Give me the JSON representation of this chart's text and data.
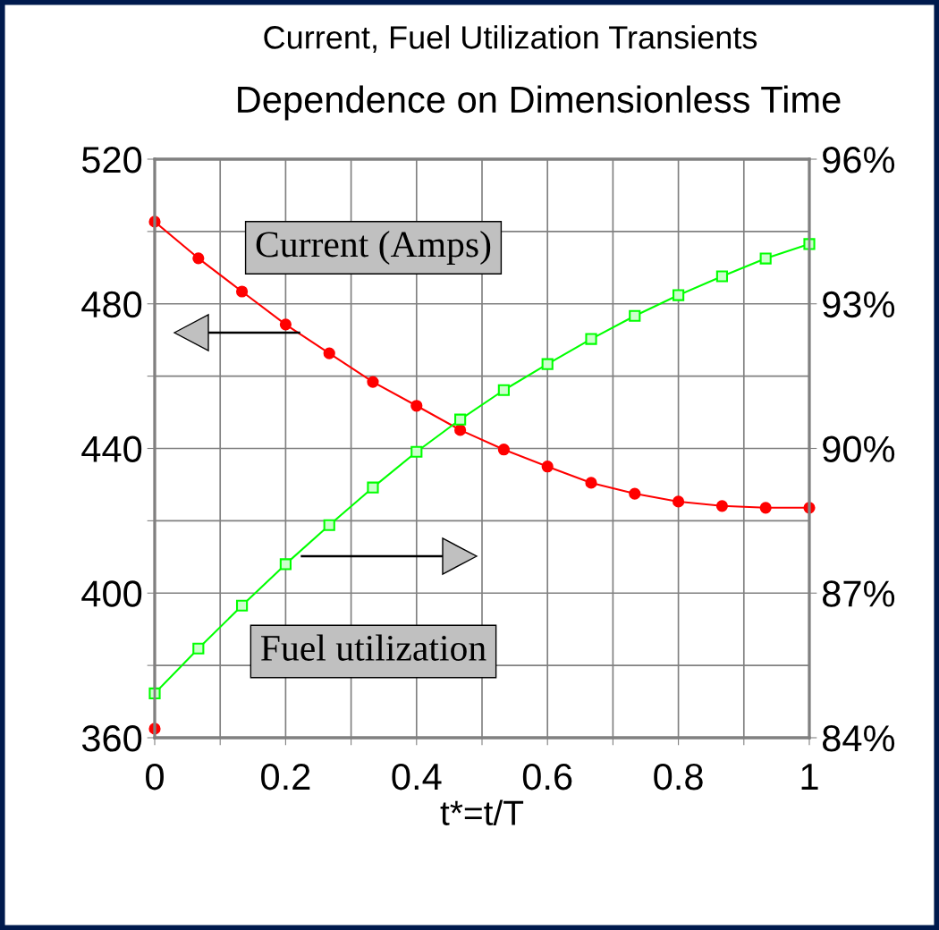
{
  "chart_data": {
    "type": "line",
    "title": "Current, Fuel Utilization Transients",
    "subtitle": "Dependence on Dimensionless Time",
    "xlabel": "t*=t/T",
    "xlim": [
      0,
      1
    ],
    "xticks": [
      0,
      {
        "value": 0.1,
        "label": null
      },
      0.2,
      {
        "value": 0.3,
        "label": null
      },
      0.4,
      {
        "value": 0.5,
        "label": null
      },
      0.6,
      {
        "value": 0.7,
        "label": null
      },
      0.8,
      {
        "value": 0.9,
        "label": null
      },
      1
    ],
    "ylim": [
      360,
      520
    ],
    "yticks": [
      360,
      {
        "value": 380,
        "label": null
      },
      400,
      {
        "value": 420,
        "label": null
      },
      440,
      {
        "value": 460,
        "label": null
      },
      480,
      {
        "value": 500,
        "label": null
      },
      520
    ],
    "y2lim": [
      84,
      96
    ],
    "y2ticks": [
      {
        "value": 84,
        "label": "84%"
      },
      {
        "value": 87,
        "label": "87%"
      },
      {
        "value": 90,
        "label": "90%"
      },
      {
        "value": 93,
        "label": "93%"
      },
      {
        "value": 96,
        "label": "96%"
      }
    ],
    "grid": true,
    "series": [
      {
        "color": "#ff0000",
        "marker": "circle",
        "x": [
          0,
          0,
          0.0667,
          0.1333,
          0.2,
          0.2667,
          0.3333,
          0.4,
          0.4667,
          0.5333,
          0.6,
          0.6667,
          0.7333,
          0.8,
          0.8667,
          0.9333,
          1
        ],
        "values": [
          362.5,
          502.7,
          492.6,
          483.4,
          474.3,
          466.3,
          458.4,
          451.8,
          445.1,
          439.7,
          435.0,
          430.5,
          427.5,
          425.3,
          424.1,
          423.6,
          423.6
        ]
      },
      {
        "color": "#00ff00",
        "marker": "square",
        "axis": "y2",
        "x": [
          0,
          0.0667,
          0.1333,
          0.2,
          0.2667,
          0.3333,
          0.4,
          0.4667,
          0.5333,
          0.6,
          0.6667,
          0.7333,
          0.8,
          0.8667,
          0.9333,
          1
        ],
        "values": [
          84.92,
          85.85,
          86.74,
          87.6,
          88.41,
          89.19,
          89.93,
          90.6,
          91.21,
          91.75,
          92.27,
          92.75,
          93.18,
          93.57,
          93.94,
          94.24
        ]
      }
    ],
    "annotations": [
      "Current (Amps)",
      "Fuel utilization"
    ]
  }
}
